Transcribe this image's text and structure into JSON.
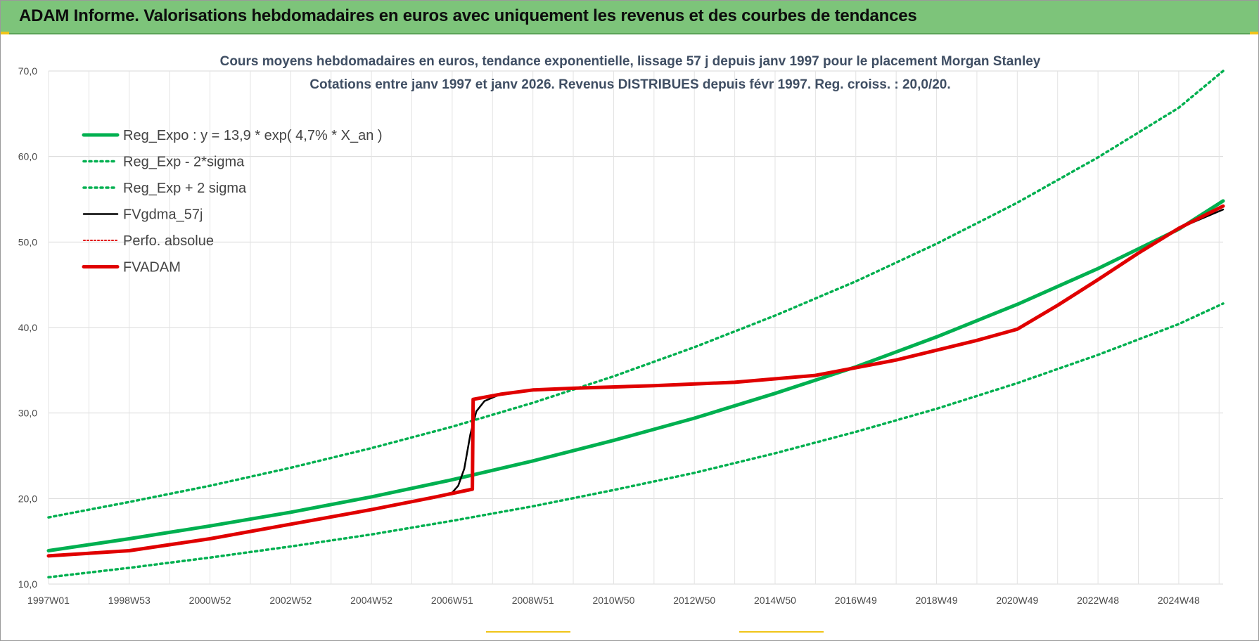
{
  "banner": {
    "title": "ADAM Informe. Valorisations hebdomadaires en euros avec uniquement les revenus et des courbes de tendances"
  },
  "colors": {
    "banner": "#7dc47a",
    "green": "#00b050",
    "red": "#e00000",
    "black": "#000000"
  },
  "chart_data": {
    "type": "line",
    "title": "Cours moyens hebdomadaires en euros, tendance exponentielle, lissage 57 j depuis janv 1997  pour le placement Morgan Stanley",
    "subtitle": "Cotations entre janv 1997 et janv 2026. Revenus DISTRIBUES depuis févr 1997. Reg. croiss. : 20,0/20.",
    "xlabel": "",
    "ylabel": "",
    "xlim": [
      1997.0,
      2026.1
    ],
    "ylim": [
      10,
      70
    ],
    "y_ticks": [
      "10,0",
      "20,0",
      "30,0",
      "40,0",
      "50,0",
      "60,0",
      "70,0"
    ],
    "y_tick_values": [
      10,
      20,
      30,
      40,
      50,
      60,
      70
    ],
    "x_tick_labels": [
      "1997W01",
      "1998W53",
      "2000W52",
      "2002W52",
      "2004W52",
      "2006W51",
      "2008W51",
      "2010W50",
      "2012W50",
      "2014W50",
      "2016W49",
      "2018W49",
      "2020W49",
      "2022W48",
      "2024W48"
    ],
    "x_tick_values": [
      1997.0,
      1999.0,
      2001.0,
      2003.0,
      2005.0,
      2007.0,
      2009.0,
      2011.0,
      2013.0,
      2015.0,
      2017.0,
      2019.0,
      2021.0,
      2023.0,
      2025.0
    ],
    "grid": true,
    "legend_position": "top-left",
    "series": [
      {
        "name": "Reg_Expo : y = 13,9 * exp( 4,7% *  X_an )",
        "style": "solid-thick",
        "color": "#00b050",
        "x": [
          1997.0,
          1999.0,
          2001.0,
          2003.0,
          2005.0,
          2007.0,
          2009.0,
          2011.0,
          2013.0,
          2015.0,
          2017.0,
          2019.0,
          2021.0,
          2023.0,
          2025.0,
          2026.1
        ],
        "values": [
          13.9,
          15.3,
          16.8,
          18.4,
          20.2,
          22.2,
          24.4,
          26.8,
          29.4,
          32.3,
          35.4,
          38.9,
          42.7,
          46.9,
          51.5,
          54.8
        ]
      },
      {
        "name": "Reg_Exp - 2*sigma",
        "style": "dotted",
        "color": "#00b050",
        "x": [
          1997.0,
          1999.0,
          2001.0,
          2003.0,
          2005.0,
          2007.0,
          2009.0,
          2011.0,
          2013.0,
          2015.0,
          2017.0,
          2019.0,
          2021.0,
          2023.0,
          2025.0,
          2026.1
        ],
        "values": [
          10.8,
          11.9,
          13.1,
          14.4,
          15.8,
          17.4,
          19.1,
          21.0,
          23.0,
          25.3,
          27.8,
          30.5,
          33.5,
          36.8,
          40.4,
          42.8
        ]
      },
      {
        "name": "Reg_Exp + 2 sigma",
        "style": "dotted",
        "color": "#00b050",
        "x": [
          1997.0,
          1999.0,
          2001.0,
          2003.0,
          2005.0,
          2007.0,
          2009.0,
          2011.0,
          2013.0,
          2015.0,
          2017.0,
          2019.0,
          2021.0,
          2023.0,
          2025.0,
          2026.1
        ],
        "values": [
          17.8,
          19.6,
          21.5,
          23.6,
          25.9,
          28.4,
          31.2,
          34.3,
          37.7,
          41.4,
          45.4,
          49.8,
          54.6,
          59.9,
          65.7,
          70.0
        ]
      },
      {
        "name": "FVgdma_57j",
        "style": "solid-thin",
        "color": "#000000",
        "x": [
          1997.0,
          1999.0,
          2001.0,
          2003.0,
          2005.0,
          2006.5,
          2007.0,
          2007.15,
          2007.3,
          2007.45,
          2007.6,
          2007.8,
          2008.2,
          2009.0,
          2010.0,
          2012.0,
          2014.0,
          2016.0,
          2018.0,
          2020.0,
          2021.0,
          2022.0,
          2023.0,
          2024.0,
          2025.0,
          2026.1
        ],
        "values": [
          13.3,
          13.9,
          15.3,
          17.0,
          18.7,
          20.1,
          20.7,
          21.5,
          23.5,
          27.5,
          30.2,
          31.4,
          32.2,
          32.7,
          32.9,
          33.2,
          33.6,
          34.4,
          36.2,
          38.5,
          39.8,
          42.6,
          45.6,
          48.7,
          51.6,
          53.8
        ]
      },
      {
        "name": "Perfo. absolue",
        "style": "dotted-thin",
        "color": "#e00000",
        "x": [
          1997.0,
          1999.0,
          2001.0,
          2003.0,
          2005.0,
          2006.5,
          2007.5,
          2007.52,
          2008.2,
          2009.0,
          2010.0,
          2012.0,
          2014.0,
          2016.0,
          2018.0,
          2020.0,
          2021.0,
          2022.0,
          2023.0,
          2024.0,
          2025.0,
          2026.1
        ],
        "values": [
          13.3,
          13.9,
          15.3,
          17.0,
          18.7,
          20.1,
          21.1,
          31.6,
          32.2,
          32.7,
          32.9,
          33.2,
          33.6,
          34.4,
          36.2,
          38.5,
          39.8,
          42.6,
          45.6,
          48.7,
          51.6,
          54.2
        ]
      },
      {
        "name": "FVADAM",
        "style": "solid-thick",
        "color": "#e00000",
        "x": [
          1997.0,
          1999.0,
          2001.0,
          2003.0,
          2005.0,
          2006.5,
          2007.5,
          2007.52,
          2008.2,
          2009.0,
          2010.0,
          2012.0,
          2014.0,
          2016.0,
          2018.0,
          2020.0,
          2021.0,
          2022.0,
          2023.0,
          2024.0,
          2025.0,
          2026.1
        ],
        "values": [
          13.3,
          13.9,
          15.3,
          17.0,
          18.7,
          20.1,
          21.1,
          31.6,
          32.2,
          32.7,
          32.9,
          33.2,
          33.6,
          34.4,
          36.2,
          38.5,
          39.8,
          42.6,
          45.6,
          48.7,
          51.6,
          54.2
        ]
      }
    ]
  }
}
